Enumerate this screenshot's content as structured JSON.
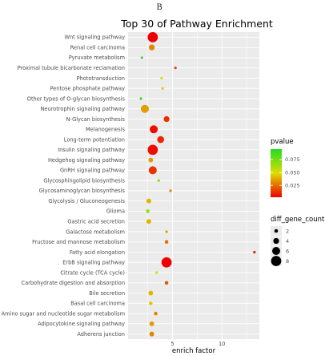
{
  "figure": {
    "panel_label": "B"
  },
  "chart_data": {
    "type": "scatter",
    "title": "Top 30 of Pathway Enrichment",
    "xlabel": "enrich factor",
    "ylabel": "",
    "x_ticks": [
      5,
      10
    ],
    "xlim": [
      0.5,
      13.8
    ],
    "grid": true,
    "legend_placement": "right",
    "categories": [
      "Wnt signaling pathway",
      "Renal cell carcinoma",
      "Pyruvate metabolism",
      "Proximal tubule bicarbonate reclamation",
      "Phototransduction",
      "Pentose phosphate pathway",
      "Other types of O-glycan biosynthesis",
      "Neurotrophin signaling pathway",
      "N-Glycan biosynthesis",
      "Melanogenesis",
      "Long-term potentiation",
      "Insulin signaling pathway",
      "Hedgehog signaling pathway",
      "GnRH signaling pathway",
      "Glycosphingolipid biosynthesis",
      "Glycosaminoglycan biosynthesis",
      "Glycolysis / Gluconeogenesis",
      "Glioma",
      "Gastric acid secretion",
      "Galactose metabolism",
      "Fructose and mannose metabolism",
      "Fatty acid elongation",
      "ErbB signaling pathway",
      "Citrate cycle (TCA cycle)",
      "Carbohydrate digestion and absorption",
      "Bile secretion",
      "Basal cell carcinoma",
      "Amino sugar and nucleotide sugar metabolism",
      "Adipocytokine signaling pathway",
      "Adherens junction"
    ],
    "points": [
      {
        "pathway": "Wnt signaling pathway",
        "enrich_factor": 3.0,
        "pvalue": 0.002,
        "diff_gene_count": 8
      },
      {
        "pathway": "Renal cell carcinoma",
        "enrich_factor": 2.9,
        "pvalue": 0.03,
        "diff_gene_count": 4
      },
      {
        "pathway": "Pyruvate metabolism",
        "enrich_factor": 1.9,
        "pvalue": 0.09,
        "diff_gene_count": 1
      },
      {
        "pathway": "Proximal tubule bicarbonate reclamation",
        "enrich_factor": 5.3,
        "pvalue": 0.015,
        "diff_gene_count": 1
      },
      {
        "pathway": "Phototransduction",
        "enrich_factor": 3.9,
        "pvalue": 0.05,
        "diff_gene_count": 1
      },
      {
        "pathway": "Pentose phosphate pathway",
        "enrich_factor": 4.0,
        "pvalue": 0.045,
        "diff_gene_count": 1
      },
      {
        "pathway": "Other types of O-glycan biosynthesis",
        "enrich_factor": 1.8,
        "pvalue": 0.09,
        "diff_gene_count": 1
      },
      {
        "pathway": "Neurotrophin signaling pathway",
        "enrich_factor": 2.2,
        "pvalue": 0.035,
        "diff_gene_count": 6
      },
      {
        "pathway": "N-Glycan biosynthesis",
        "enrich_factor": 4.4,
        "pvalue": 0.012,
        "diff_gene_count": 4
      },
      {
        "pathway": "Melanogenesis",
        "enrich_factor": 3.1,
        "pvalue": 0.005,
        "diff_gene_count": 6
      },
      {
        "pathway": "Long-term potentiation",
        "enrich_factor": 3.8,
        "pvalue": 0.01,
        "diff_gene_count": 5
      },
      {
        "pathway": "Insulin signaling pathway",
        "enrich_factor": 3.0,
        "pvalue": 0.005,
        "diff_gene_count": 8
      },
      {
        "pathway": "Hedgehog signaling pathway",
        "enrich_factor": 2.8,
        "pvalue": 0.035,
        "diff_gene_count": 3
      },
      {
        "pathway": "GnRH signaling pathway",
        "enrich_factor": 3.0,
        "pvalue": 0.012,
        "diff_gene_count": 6
      },
      {
        "pathway": "Glycosphingolipid biosynthesis",
        "enrich_factor": 3.6,
        "pvalue": 0.07,
        "diff_gene_count": 1
      },
      {
        "pathway": "Glycosaminoglycan biosynthesis",
        "enrich_factor": 4.8,
        "pvalue": 0.03,
        "diff_gene_count": 1
      },
      {
        "pathway": "Glycolysis / Gluconeogenesis",
        "enrich_factor": 2.6,
        "pvalue": 0.04,
        "diff_gene_count": 3
      },
      {
        "pathway": "Glioma",
        "enrich_factor": 2.5,
        "pvalue": 0.065,
        "diff_gene_count": 2
      },
      {
        "pathway": "Gastric acid secretion",
        "enrich_factor": 2.6,
        "pvalue": 0.04,
        "diff_gene_count": 3
      },
      {
        "pathway": "Galactose metabolism",
        "enrich_factor": 4.4,
        "pvalue": 0.035,
        "diff_gene_count": 1
      },
      {
        "pathway": "Fructose and mannose metabolism",
        "enrich_factor": 4.4,
        "pvalue": 0.025,
        "diff_gene_count": 2
      },
      {
        "pathway": "Fatty acid elongation",
        "enrich_factor": 13.3,
        "pvalue": 0.008,
        "diff_gene_count": 1
      },
      {
        "pathway": "ErbB signaling pathway",
        "enrich_factor": 4.4,
        "pvalue": 0.002,
        "diff_gene_count": 8
      },
      {
        "pathway": "Citrate cycle (TCA cycle)",
        "enrich_factor": 3.4,
        "pvalue": 0.05,
        "diff_gene_count": 1
      },
      {
        "pathway": "Carbohydrate digestion and absorption",
        "enrich_factor": 4.4,
        "pvalue": 0.02,
        "diff_gene_count": 2
      },
      {
        "pathway": "Bile secretion",
        "enrich_factor": 2.8,
        "pvalue": 0.04,
        "diff_gene_count": 3
      },
      {
        "pathway": "Basal cell carcinoma",
        "enrich_factor": 2.8,
        "pvalue": 0.045,
        "diff_gene_count": 2
      },
      {
        "pathway": "Amino sugar and nucleotide sugar metabolism",
        "enrich_factor": 3.3,
        "pvalue": 0.03,
        "diff_gene_count": 2
      },
      {
        "pathway": "Adipocytokine signaling pathway",
        "enrich_factor": 2.9,
        "pvalue": 0.035,
        "diff_gene_count": 3
      },
      {
        "pathway": "Adherens junction",
        "enrich_factor": 2.9,
        "pvalue": 0.03,
        "diff_gene_count": 3
      }
    ],
    "color_legend": {
      "title": "pvalue",
      "ticks": [
        0.075,
        0.05,
        0.025
      ],
      "tick_labels": [
        "0.075",
        "0.050",
        "0.025"
      ],
      "range": [
        0.002,
        0.095
      ],
      "low_color": "#ee0000",
      "high_color": "#22dd22"
    },
    "size_legend": {
      "title": "diff_gene_count",
      "values": [
        2,
        4,
        6,
        8
      ],
      "range": [
        1,
        8
      ]
    },
    "colors": {
      "panel_background": "#ebebeb",
      "gridline": "#ffffff"
    }
  }
}
